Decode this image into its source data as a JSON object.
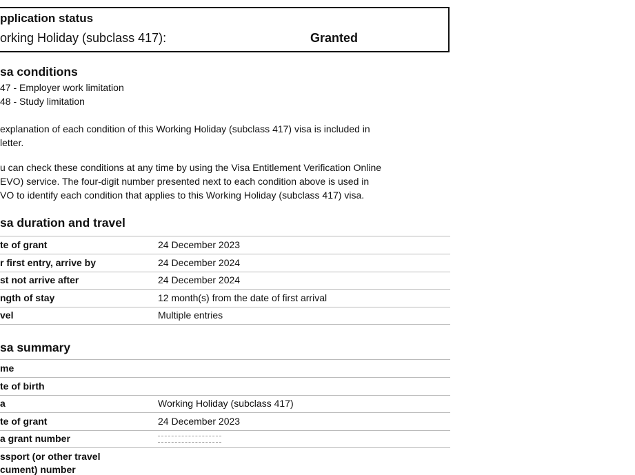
{
  "application_status": {
    "heading": "pplication status",
    "visa_label": "orking Holiday (subclass 417):",
    "status": "Granted"
  },
  "visa_conditions": {
    "heading": "sa conditions",
    "items": [
      "47 - Employer work limitation",
      "48 - Study limitation"
    ],
    "para1": [
      "explanation of each condition of this Working Holiday (subclass 417) visa is included in",
      " letter."
    ],
    "para2": [
      "u can check these conditions at any time by using the Visa Entitlement Verification Online",
      "EVO) service. The four-digit number presented next to each condition above is used in",
      "VO to identify each condition that applies to this Working Holiday (subclass 417) visa."
    ]
  },
  "duration_travel": {
    "heading": "sa duration and travel",
    "rows": [
      {
        "label": "te of grant",
        "value": "24 December 2023"
      },
      {
        "label": "r first entry, arrive by",
        "value": "24 December 2024"
      },
      {
        "label": "st not arrive after",
        "value": "24 December 2024"
      },
      {
        "label": "ngth of stay",
        "value": "12 month(s) from the date of first arrival"
      },
      {
        "label": "vel",
        "value": "Multiple entries"
      }
    ]
  },
  "visa_summary": {
    "heading": "sa summary",
    "rows": [
      {
        "label": "me",
        "value": ""
      },
      {
        "label": "te of birth",
        "value": ""
      },
      {
        "label": "a",
        "value": "Working Holiday (subclass 417)"
      },
      {
        "label": "te of grant",
        "value": "24 December 2023"
      },
      {
        "label": "a grant number",
        "value": ""
      }
    ],
    "passport_label": [
      "ssport (or other travel",
      "cument) number"
    ]
  }
}
